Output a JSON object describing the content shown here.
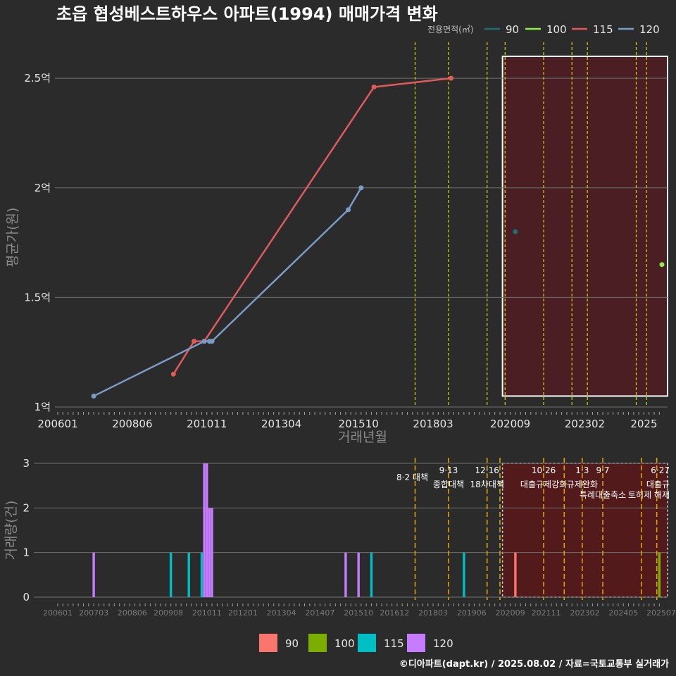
{
  "title": "초읍 협성베스트하우스 아파트(1994) 매매가격 변화",
  "footer": "©디아파트(dapt.kr) / 2025.08.02 / 자료=국토교통부 실거래가",
  "colors": {
    "bg": "#2b2b2b",
    "grid": "#707070",
    "policy_line": "#d8d800",
    "policy_line_bottom": "#e0a000",
    "shade_fill": "#4a1e22",
    "shade_fill_bottom": "#521a1a",
    "90": "#f8766d",
    "100": "#7cae00",
    "115": "#00bfc4",
    "120": "#c77cff",
    "line_90": "#1f6f73",
    "line_100": "#90ee50",
    "line_115": "#e05a5a",
    "line_120": "#7a9cc6"
  },
  "chart_data": [
    {
      "type": "line",
      "title": "초읍 협성베스트하우스 아파트(1994) 매매가격 변화",
      "xlabel": "거래년월",
      "ylabel": "평균가(원)",
      "x_range": [
        "2006-01",
        "2025-08"
      ],
      "x_ticks": [
        "200601",
        "200806",
        "201011",
        "201304",
        "201510",
        "201803",
        "202009",
        "202302",
        "2025"
      ],
      "ylim": [
        1.0,
        2.6
      ],
      "y_ticks": [
        {
          "value": 1.0,
          "label": "1억"
        },
        {
          "value": 1.5,
          "label": "1.5억"
        },
        {
          "value": 2.0,
          "label": "2억"
        },
        {
          "value": 2.5,
          "label": "2.5억"
        }
      ],
      "legend_title": "전용면적(㎡)",
      "legend": [
        "90",
        "100",
        "115",
        "120"
      ],
      "legend_position": "top-right",
      "grid": true,
      "series": [
        {
          "name": "90",
          "points": [
            [
              "2020-11",
              1.8
            ]
          ]
        },
        {
          "name": "100",
          "points": [
            [
              "2025-08",
              1.65
            ]
          ]
        },
        {
          "name": "115",
          "points": [
            [
              "2009-10",
              1.15
            ],
            [
              "2010-06",
              1.3
            ],
            [
              "2010-10",
              1.3
            ],
            [
              "2016-04",
              2.46
            ],
            [
              "2018-10",
              2.5
            ]
          ]
        },
        {
          "name": "120",
          "points": [
            [
              "2007-03",
              1.05
            ],
            [
              "2010-10",
              1.3
            ],
            [
              "2010-12",
              1.3
            ],
            [
              "2011-01",
              1.3
            ],
            [
              "2015-06",
              1.9
            ],
            [
              "2015-11",
              2.0
            ]
          ]
        }
      ],
      "policy_lines": [
        "2017-08",
        "2018-09",
        "2019-12",
        "2020-07",
        "2021-10",
        "2022-09",
        "2023-03",
        "2024-10",
        "2025-02"
      ],
      "shaded_period": [
        "2020-06",
        "2025-08"
      ]
    },
    {
      "type": "bar",
      "ylabel": "거래량(건)",
      "ylim": [
        0,
        3
      ],
      "y_ticks": [
        "0",
        "1",
        "2",
        "3"
      ],
      "x_ticks": [
        "200601",
        "200703",
        "200806",
        "200908",
        "201011",
        "201201",
        "201304",
        "201407",
        "201510",
        "201612",
        "201803",
        "201906",
        "202009",
        "202111",
        "202302",
        "202405",
        "202507"
      ],
      "legend": [
        "90",
        "100",
        "115",
        "120"
      ],
      "legend_position": "bottom",
      "bars": [
        {
          "x": "2007-03",
          "series": "120",
          "value": 1
        },
        {
          "x": "2009-09",
          "series": "115",
          "value": 1
        },
        {
          "x": "2010-04",
          "series": "115",
          "value": 1
        },
        {
          "x": "2010-09",
          "series": "115",
          "value": 1
        },
        {
          "x": "2010-10",
          "series": "120",
          "value": 3
        },
        {
          "x": "2010-11",
          "series": "120",
          "value": 3
        },
        {
          "x": "2010-12",
          "series": "120",
          "value": 2
        },
        {
          "x": "2011-01",
          "series": "120",
          "value": 2
        },
        {
          "x": "2015-05",
          "series": "120",
          "value": 1
        },
        {
          "x": "2015-10",
          "series": "120",
          "value": 1
        },
        {
          "x": "2016-03",
          "series": "115",
          "value": 1
        },
        {
          "x": "2019-03",
          "series": "115",
          "value": 1
        },
        {
          "x": "2020-11",
          "series": "90",
          "value": 1
        },
        {
          "x": "2025-07",
          "series": "100",
          "value": 1
        }
      ],
      "policy_lines": [
        "2017-08",
        "2018-09",
        "2019-12",
        "2020-05",
        "2021-10",
        "2022-06",
        "2023-01",
        "2023-09",
        "2024-12",
        "2025-06"
      ],
      "policies": [
        {
          "x": "2017-08",
          "date": "",
          "label": "8·2 대책"
        },
        {
          "x": "2018-09",
          "date": "9·13",
          "label": "종합대책"
        },
        {
          "x": "2019-12",
          "date": "12·16",
          "label": "18차대책"
        },
        {
          "x": "2021-10",
          "date": "10·26",
          "label": "대출규제강화"
        },
        {
          "x": "2023-01",
          "date": "1·3",
          "label": "규제완화"
        },
        {
          "x": "2023-09",
          "date": "9·7",
          "label": "특례대출축소"
        },
        {
          "x": "2025-03",
          "date": "",
          "label": "토허제 해제"
        },
        {
          "x": "2025-06",
          "date": "6·27",
          "label": "대출규"
        }
      ],
      "shaded_period": [
        "2020-06",
        "2025-08"
      ]
    }
  ]
}
